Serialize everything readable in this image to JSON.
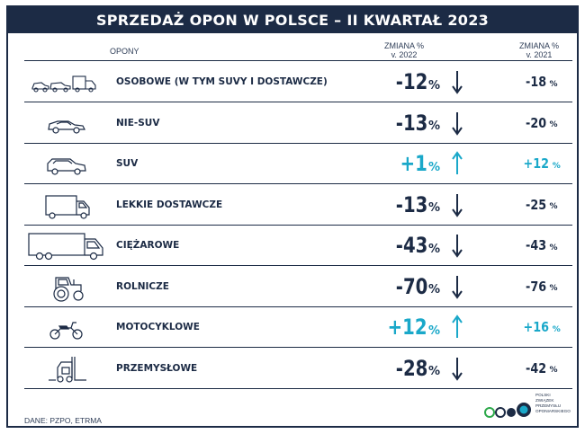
{
  "title": "SPRZEDAŻ OPON W POLSCE – II KWARTAŁ 2023",
  "headers": {
    "opony": "OPONY",
    "zmiana_2022_line1": "ZMIANA %",
    "zmiana_2022_line2": "v. 2022",
    "zmiana_2021_line1": "ZMIANA %",
    "zmiana_2021_line2": "v. 2021"
  },
  "colors": {
    "dark": "#1c2b45",
    "positive": "#1aa8c9",
    "negative": "#1c2b45"
  },
  "rows": [
    {
      "label": "OSOBOWE (W TYM SUVY I DOSTAWCZE)",
      "icon": "passenger-cars-icon",
      "v2022": "-12",
      "v2021": "-18",
      "direction": "down"
    },
    {
      "label": "NIE-SUV",
      "icon": "sedan-car-icon",
      "v2022": "-13",
      "v2021": "-20",
      "direction": "down"
    },
    {
      "label": "SUV",
      "icon": "suv-car-icon",
      "v2022": "+1",
      "v2021": "+12",
      "direction": "up"
    },
    {
      "label": "LEKKIE DOSTAWCZE",
      "icon": "delivery-van-icon",
      "v2022": "-13",
      "v2021": "-25",
      "direction": "down"
    },
    {
      "label": "CIĘŻAROWE",
      "icon": "truck-icon",
      "v2022": "-43",
      "v2021": "-43",
      "direction": "down"
    },
    {
      "label": "ROLNICZE",
      "icon": "tractor-icon",
      "v2022": "-70",
      "v2021": "-76",
      "direction": "down"
    },
    {
      "label": "MOTOCYKLOWE",
      "icon": "motorcycle-icon",
      "v2022": "+12",
      "v2021": "+16",
      "direction": "up"
    },
    {
      "label": "PRZEMYSŁOWE",
      "icon": "forklift-icon",
      "v2022": "-28",
      "v2021": "-42",
      "direction": "down"
    }
  ],
  "percent_sign": "%",
  "footer": "DANE: PZPO, ETRMA",
  "logo": {
    "icon": "pzpo-logo-icon",
    "line1": "POLSKI",
    "line2": "ZWIĄZEK",
    "line3": "PRZEMYSŁU",
    "line4": "OPONIARSKIEGO"
  }
}
